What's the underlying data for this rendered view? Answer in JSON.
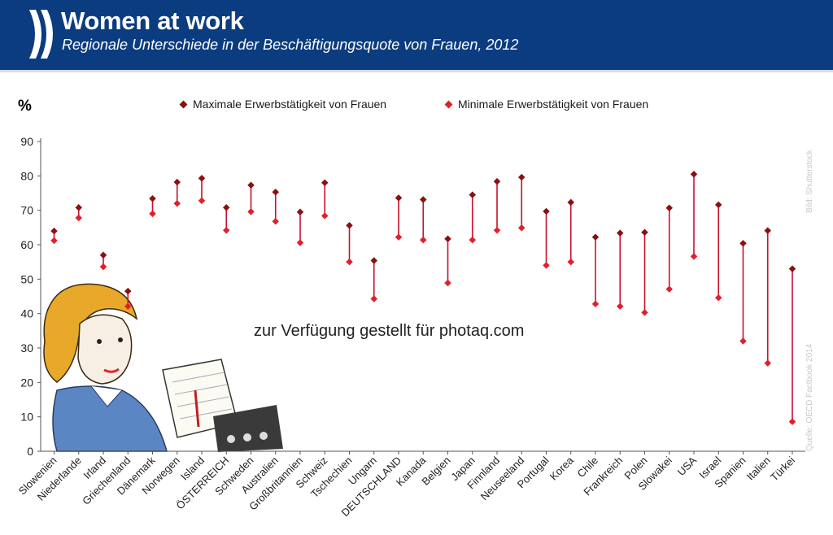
{
  "header": {
    "title": "Women at work",
    "subtitle": "Regionale Unterschiede in der Beschäftigungsquote von Frauen, 2012"
  },
  "colors": {
    "header_bg": "#0b3c80",
    "max_marker": "#8b1010",
    "min_marker": "#e0202a",
    "range_line": "#c8102e"
  },
  "watermark": "zur Verfügung gestellt für photaq.com",
  "source": "Quelle: OECD Factbook 2014",
  "credit": "Bild: Shutterstock",
  "decorative_image": "woman-with-notepad-illustration",
  "chart_data": {
    "type": "range-dot",
    "ylabel": "%",
    "ylim": [
      0,
      90
    ],
    "yticks": [
      0,
      10,
      20,
      30,
      40,
      50,
      60,
      70,
      80,
      90
    ],
    "legend": [
      {
        "name": "Maximale Erwerbstätigkeit von Frauen",
        "color": "#8b1010"
      },
      {
        "name": "Minimale Erwerbstätigkeit von Frauen",
        "color": "#e0202a"
      }
    ],
    "legend_position": "top",
    "categories": [
      "Slowenien",
      "Niederlande",
      "Irland",
      "Griechenland",
      "Dänemark",
      "Norwegen",
      "Island",
      "ÖSTERREICH",
      "Schweden",
      "Australien",
      "Großbritannien",
      "Schweiz",
      "Tschechien",
      "Ungarn",
      "DEUTSCHLAND",
      "Kanada",
      "Belgien",
      "Japan",
      "Finnland",
      "Neuseeland",
      "Portugal",
      "Korea",
      "Chile",
      "Frankreich",
      "Polen",
      "Slowakei",
      "USA",
      "Israel",
      "Spanien",
      "Italien",
      "Türkei"
    ],
    "series": [
      {
        "name": "Maximale Erwerbstätigkeit von Frauen",
        "values": [
          64,
          70.8,
          57,
          46.5,
          73.4,
          78.2,
          79.3,
          70.8,
          77.3,
          75.3,
          69.5,
          78,
          65.6,
          55.4,
          73.6,
          73.1,
          61.7,
          74.5,
          78.4,
          79.6,
          69.7,
          72.3,
          62.2,
          63.4,
          63.6,
          70.7,
          80.5,
          71.6,
          60.4,
          64.1,
          53
        ]
      },
      {
        "name": "Minimale Erwerbstätigkeit von Frauen",
        "values": [
          61.2,
          67.8,
          53.6,
          42.1,
          69,
          72,
          72.8,
          64.2,
          69.6,
          66.8,
          60.6,
          68.4,
          55,
          44.3,
          62.2,
          61.4,
          48.9,
          61.4,
          64.2,
          64.9,
          54,
          55,
          42.8,
          42.1,
          40.3,
          47.1,
          56.6,
          44.6,
          32,
          25.6,
          8.6
        ]
      }
    ]
  }
}
